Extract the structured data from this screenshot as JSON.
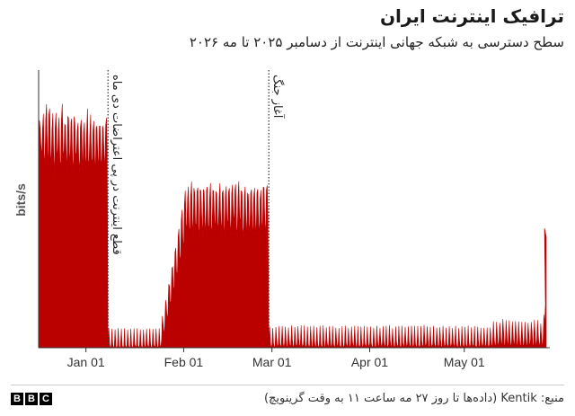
{
  "header": {
    "title": "ترافیک اینترنت ایران",
    "subtitle": "سطح دسترسی به شبکه جهانی اینترنت از دسامبر ۲۰۲۵ تا مه ۲۰۲۶"
  },
  "footer": {
    "source": "منبع: Kentik (داده‌ها تا روز ۲۷ مه ساعت ۱۱ به وقت گرینویچ)",
    "logo_letters": [
      "B",
      "B",
      "C"
    ]
  },
  "colors": {
    "series": "#bb0000",
    "axis": "#333333",
    "annotation_line": "#333333"
  },
  "chart_data": {
    "type": "area",
    "title": "ترافیک اینترنت ایران",
    "subtitle": "سطح دسترسی به شبکه جهانی اینترنت از دسامبر ۲۰۲۵ تا مه ۲۰۲۶",
    "ylabel": "bits/s",
    "xlabel": "",
    "x_range": [
      "2025-12-17",
      "2026-05-27"
    ],
    "y_range": [
      0,
      100
    ],
    "y_units_shown": false,
    "x_ticks": [
      {
        "date": "2026-01-01",
        "label": "Jan 01"
      },
      {
        "date": "2026-02-01",
        "label": "Feb 01"
      },
      {
        "date": "2026-03-01",
        "label": "Mar 01"
      },
      {
        "date": "2026-04-01",
        "label": "Apr 01"
      },
      {
        "date": "2026-05-01",
        "label": "May 01"
      }
    ],
    "annotations": [
      {
        "date": "2026-01-08",
        "label": "قطع اینترنت در پی اعتراضات دی ماه"
      },
      {
        "date": "2026-02-28",
        "label": "آغاز جنگ"
      }
    ],
    "series": [
      {
        "pattern": "daily_oscillation",
        "segments": [
          {
            "start": "2025-12-17",
            "end": "2026-01-08",
            "daily_peak": [
              78,
              88
            ],
            "daily_trough": [
              62,
              70
            ]
          },
          {
            "start": "2026-01-08",
            "end": "2026-01-25",
            "daily_peak": [
              0.5,
              1.5
            ],
            "daily_trough": [
              0.3,
              0.8
            ]
          },
          {
            "start": "2026-01-25",
            "end": "2026-02-02",
            "daily_peak": [
              5,
              60
            ],
            "daily_trough": [
              3,
              40
            ]
          },
          {
            "start": "2026-02-02",
            "end": "2026-02-28",
            "daily_peak": [
              55,
              60
            ],
            "daily_trough": [
              38,
              45
            ]
          },
          {
            "start": "2026-02-28",
            "end": "2026-05-10",
            "daily_peak": [
              1,
              3
            ],
            "daily_trough": [
              0.6,
              1.5
            ]
          },
          {
            "start": "2026-05-10",
            "end": "2026-05-26",
            "daily_peak": [
              3,
              6
            ],
            "daily_trough": [
              1.5,
              3
            ]
          },
          {
            "start": "2026-05-26",
            "end": "2026-05-27",
            "daily_peak": [
              6,
              43
            ],
            "daily_trough": [
              3,
              6
            ]
          }
        ]
      }
    ],
    "legend": "none",
    "grid": false
  }
}
